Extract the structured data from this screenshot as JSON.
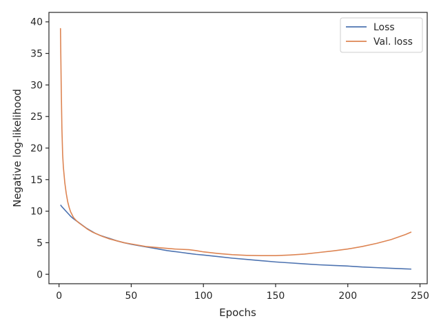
{
  "chart_data": {
    "type": "line",
    "title": "",
    "xlabel": "Epochs",
    "ylabel": "Negative log-likelihood",
    "xlim": [
      -7,
      255
    ],
    "ylim": [
      -1.5,
      41.5
    ],
    "xticks": [
      0,
      50,
      100,
      150,
      200,
      250
    ],
    "yticks": [
      0,
      5,
      10,
      15,
      20,
      25,
      30,
      35,
      40
    ],
    "grid": false,
    "legend": {
      "position": "top-right"
    },
    "series": [
      {
        "name": "Loss",
        "color": "#4c72b0",
        "x": [
          1,
          2,
          4,
          6,
          8,
          10,
          13,
          16,
          19,
          22,
          25,
          28,
          32,
          36,
          40,
          45,
          50,
          55,
          60,
          65,
          70,
          75,
          80,
          85,
          90,
          95,
          100,
          110,
          120,
          130,
          140,
          150,
          160,
          170,
          180,
          190,
          200,
          210,
          220,
          230,
          240,
          244
        ],
        "y": [
          11.0,
          10.7,
          10.2,
          9.7,
          9.2,
          8.8,
          8.3,
          7.8,
          7.3,
          6.9,
          6.5,
          6.2,
          5.9,
          5.6,
          5.3,
          5.0,
          4.75,
          4.55,
          4.35,
          4.15,
          3.95,
          3.75,
          3.6,
          3.45,
          3.3,
          3.15,
          3.05,
          2.8,
          2.55,
          2.35,
          2.15,
          1.95,
          1.8,
          1.65,
          1.5,
          1.4,
          1.3,
          1.15,
          1.05,
          0.95,
          0.85,
          0.82
        ]
      },
      {
        "name": "Val. loss",
        "color": "#dd8452",
        "x": [
          1,
          1.5,
          2,
          2.5,
          3,
          4,
          5,
          6,
          7,
          8,
          10,
          12,
          14,
          17,
          20,
          23,
          26,
          30,
          35,
          40,
          45,
          50,
          60,
          70,
          80,
          90,
          95,
          100,
          110,
          120,
          130,
          140,
          150,
          160,
          170,
          180,
          190,
          200,
          210,
          220,
          230,
          240,
          244
        ],
        "y": [
          39.0,
          30.0,
          23.0,
          19.0,
          17.0,
          14.5,
          12.8,
          11.5,
          10.6,
          9.9,
          9.0,
          8.5,
          8.1,
          7.6,
          7.1,
          6.7,
          6.4,
          6.0,
          5.6,
          5.3,
          5.0,
          4.8,
          4.4,
          4.2,
          4.0,
          3.9,
          3.75,
          3.55,
          3.3,
          3.1,
          3.0,
          2.95,
          2.95,
          3.05,
          3.2,
          3.45,
          3.7,
          4.0,
          4.4,
          4.9,
          5.5,
          6.3,
          6.7
        ]
      }
    ]
  }
}
